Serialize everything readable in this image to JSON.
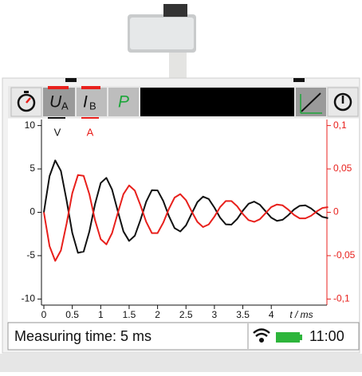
{
  "toolbar": {
    "u_symbol": "U",
    "u_sub": "A",
    "i_symbol": "I",
    "i_sub": "B",
    "p_symbol": "P"
  },
  "status": {
    "text": "Measuring time: 5 ms",
    "time": "11:00"
  },
  "chart_data": {
    "type": "line",
    "ylabel": "V",
    "y2label": "A",
    "xlabel": "t / ms",
    "x": [
      0,
      0.1,
      0.2,
      0.3,
      0.4,
      0.5,
      0.6,
      0.7,
      0.8,
      0.9,
      1.0,
      1.1,
      1.2,
      1.3,
      1.4,
      1.5,
      1.6,
      1.7,
      1.8,
      1.9,
      2.0,
      2.1,
      2.2,
      2.3,
      2.4,
      2.5,
      2.6,
      2.7,
      2.8,
      2.9,
      3.0,
      3.1,
      3.2,
      3.3,
      3.4,
      3.5,
      3.6,
      3.7,
      3.8,
      3.9,
      4.0,
      4.1,
      4.2,
      4.3,
      4.4,
      4.5,
      4.6,
      4.7,
      4.8,
      4.9,
      5.0
    ],
    "series": [
      {
        "color": "#111111",
        "values": [
          0,
          4.17,
          5.98,
          4.77,
          1.37,
          -2.38,
          -4.67,
          -4.53,
          -2.23,
          0.94,
          3.38,
          3.97,
          2.62,
          0.15,
          -2.21,
          -3.3,
          -2.7,
          -0.87,
          1.22,
          2.55,
          2.53,
          1.31,
          -0.44,
          -1.83,
          -2.21,
          -1.51,
          -0.15,
          1.17,
          1.81,
          1.53,
          0.54,
          -0.62,
          -1.39,
          -1.42,
          -0.77,
          0.19,
          0.98,
          1.23,
          0.87,
          0.12,
          -0.62,
          -0.99,
          -0.86,
          -0.33,
          0.32,
          0.75,
          0.8,
          0.45,
          -0.08,
          -0.53,
          -0.68
        ]
      },
      {
        "color": "#e8201c",
        "axis": "y2",
        "values": [
          0,
          -0.039,
          -0.056,
          -0.044,
          -0.013,
          0.022,
          0.043,
          0.042,
          0.021,
          -0.009,
          -0.031,
          -0.037,
          -0.024,
          -0.001,
          0.021,
          0.031,
          0.025,
          0.008,
          -0.011,
          -0.024,
          -0.024,
          -0.012,
          0.004,
          0.017,
          0.021,
          0.014,
          0.001,
          -0.011,
          -0.017,
          -0.014,
          -0.005,
          0.006,
          0.013,
          0.013,
          0.007,
          -0.002,
          -0.009,
          -0.011,
          -0.008,
          -0.001,
          0.006,
          0.009,
          0.008,
          0.003,
          -0.003,
          -0.007,
          -0.007,
          -0.004,
          0.001,
          0.005,
          0.006
        ]
      }
    ],
    "xlim": [
      0,
      5
    ],
    "xticks": [
      0,
      0.5,
      1,
      1.5,
      2,
      2.5,
      3,
      3.5,
      4
    ],
    "ylim": [
      -10.7,
      10.7
    ],
    "yticks": [
      10,
      5,
      0,
      -5,
      -10
    ],
    "y2lim": [
      -0.107,
      0.107
    ],
    "y2ticks": [
      {
        "value": 0.1,
        "label": "0,1"
      },
      {
        "value": 0.05,
        "label": "0,05"
      },
      {
        "value": 0,
        "label": "0"
      },
      {
        "value": -0.05,
        "label": "-0,05"
      },
      {
        "value": -0.1,
        "label": "-0,1"
      }
    ]
  }
}
